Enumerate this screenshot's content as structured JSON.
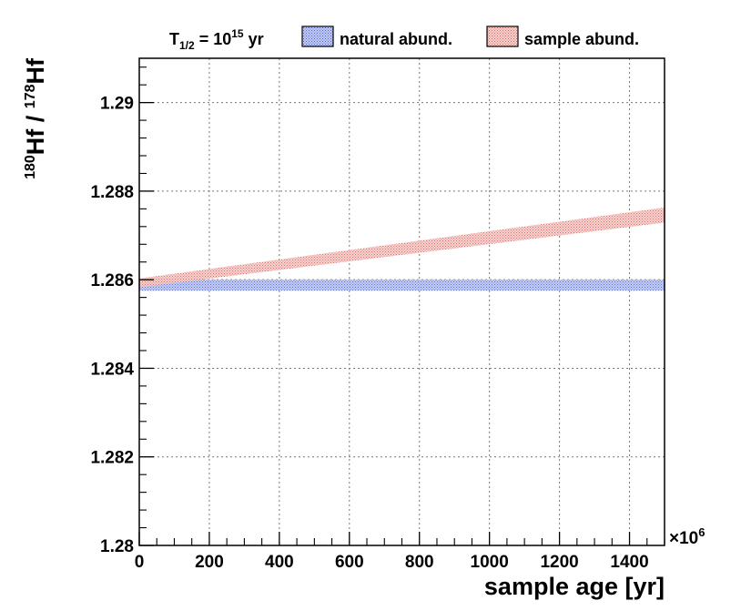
{
  "chart_data": {
    "type": "area",
    "title": "",
    "xlabel": "sample age [yr]",
    "ylabel_parts": {
      "iso_num": "180",
      "num": "Hf",
      "sep": " / ",
      "iso_den": "178",
      "den": "Hf"
    },
    "x_multiplier": {
      "base": "×10",
      "exp": "6"
    },
    "xlim": [
      0,
      1500
    ],
    "ylim": [
      1.28,
      1.291
    ],
    "x_ticks": [
      0,
      200,
      400,
      600,
      800,
      1000,
      1200,
      1400
    ],
    "x_tick_labels": [
      "0",
      "200",
      "400",
      "600",
      "800",
      "1000",
      "1200",
      "1400"
    ],
    "y_ticks": [
      1.28,
      1.282,
      1.284,
      1.286,
      1.288,
      1.29
    ],
    "y_tick_labels": [
      "1.28",
      "1.282",
      "1.284",
      "1.286",
      "1.288",
      "1.29"
    ],
    "grid": true,
    "legend_position": "top",
    "legend": {
      "halflife_parts": {
        "T": "T",
        "sub": "1/2",
        "eq": " = 10",
        "exp": "15",
        "unit": " yr"
      },
      "entries": [
        "natural abund.",
        "sample abund."
      ]
    },
    "series": [
      {
        "name": "natural abund.",
        "color": "#6a7fe0",
        "fill": "#b3c0f2",
        "x": [
          0,
          1500
        ],
        "y_low": [
          1.28575,
          1.28575
        ],
        "y_high": [
          1.286,
          1.286
        ]
      },
      {
        "name": "sample abund.",
        "color": "#e2807a",
        "fill": "#f4c1bd",
        "x": [
          0,
          1500
        ],
        "y_low": [
          1.28583,
          1.28729
        ],
        "y_high": [
          1.28603,
          1.28763
        ]
      }
    ]
  }
}
